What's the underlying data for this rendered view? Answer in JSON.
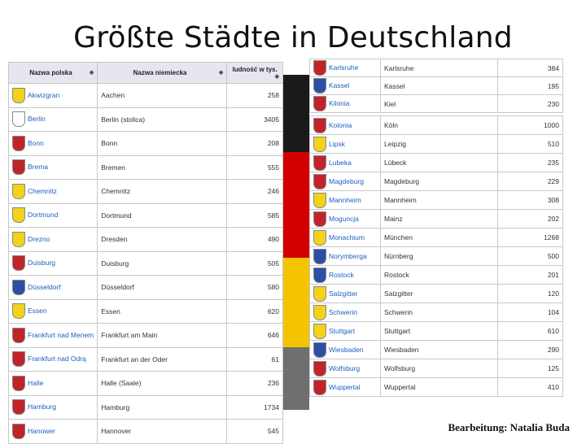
{
  "title": "Größte Städte in Deutschland",
  "credit": "Bearbeitung: Natalia Buda",
  "left_table": {
    "headers": [
      "Nazwa polska",
      "Nazwa niemiecka",
      "ludność w tys."
    ],
    "rows": [
      {
        "pl": "Akwizgran",
        "de": "Aachen",
        "pop": "258",
        "color": "#f2d21b"
      },
      {
        "pl": "Berlin",
        "de": "Berlin (stolica)",
        "pop": "3405",
        "color": "#ffffff"
      },
      {
        "pl": "Bonn",
        "de": "Bonn",
        "pop": "208",
        "color": "#c0242a"
      },
      {
        "pl": "Brema",
        "de": "Bremen",
        "pop": "555",
        "color": "#c0242a"
      },
      {
        "pl": "Chemnitz",
        "de": "Chemnitz",
        "pop": "246",
        "color": "#f2d21b"
      },
      {
        "pl": "Dortmund",
        "de": "Dortmund",
        "pop": "585",
        "color": "#f2d21b"
      },
      {
        "pl": "Drezno",
        "de": "Dresden",
        "pop": "490",
        "color": "#f2d21b"
      },
      {
        "pl": "Duisburg",
        "de": "Duisburg",
        "pop": "505",
        "color": "#c0242a"
      },
      {
        "pl": "Düsseldorf",
        "de": "Düsseldorf",
        "pop": "580",
        "color": "#2c4fa3"
      },
      {
        "pl": "Essen",
        "de": "Essen",
        "pop": "620",
        "color": "#f2d21b"
      },
      {
        "pl": "Frankfurt nad Menem",
        "de": "Frankfurt am Main",
        "pop": "646",
        "color": "#c0242a"
      },
      {
        "pl": "Frankfurt nad Odrą",
        "de": "Frankfurt an der Oder",
        "pop": "61",
        "color": "#c0242a"
      },
      {
        "pl": "Halle",
        "de": "Halle (Saale)",
        "pop": "236",
        "color": "#c0242a"
      },
      {
        "pl": "Hamburg",
        "de": "Hamburg",
        "pop": "1734",
        "color": "#c0242a"
      },
      {
        "pl": "Hanower",
        "de": "Hannover",
        "pop": "545",
        "color": "#c0242a"
      }
    ]
  },
  "right_top_table": {
    "rows": [
      {
        "pl": "Karlsruhe",
        "de": "Karlsruhe",
        "pop": "384",
        "color": "#c0242a"
      },
      {
        "pl": "Kassel",
        "de": "Kassel",
        "pop": "195",
        "color": "#2c4fa3"
      },
      {
        "pl": "Kilonia",
        "de": "Kiel",
        "pop": "230",
        "color": "#c0242a"
      }
    ]
  },
  "right_table": {
    "rows": [
      {
        "pl": "Kolonia",
        "de": "Köln",
        "pop": "1000",
        "color": "#c0242a"
      },
      {
        "pl": "Lipsk",
        "de": "Leipzig",
        "pop": "510",
        "color": "#f2d21b"
      },
      {
        "pl": "Lubeka",
        "de": "Lübeck",
        "pop": "235",
        "color": "#c0242a"
      },
      {
        "pl": "Magdeburg",
        "de": "Magdeburg",
        "pop": "229",
        "color": "#c0242a"
      },
      {
        "pl": "Mannheim",
        "de": "Mannheim",
        "pop": "308",
        "color": "#f2d21b"
      },
      {
        "pl": "Moguncja",
        "de": "Mainz",
        "pop": "202",
        "color": "#c0242a"
      },
      {
        "pl": "Monachium",
        "de": "München",
        "pop": "1268",
        "color": "#f2d21b"
      },
      {
        "pl": "Norymberga",
        "de": "Nürnberg",
        "pop": "500",
        "color": "#2c4fa3"
      },
      {
        "pl": "Rostock",
        "de": "Rostock",
        "pop": "201",
        "color": "#2c4fa3"
      },
      {
        "pl": "Salzgitter",
        "de": "Salzgitter",
        "pop": "120",
        "color": "#f2d21b"
      },
      {
        "pl": "Schwerin",
        "de": "Schwerin",
        "pop": "104",
        "color": "#f2d21b"
      },
      {
        "pl": "Stuttgart",
        "de": "Stuttgart",
        "pop": "610",
        "color": "#f2d21b"
      },
      {
        "pl": "Wiesbaden",
        "de": "Wiesbaden",
        "pop": "290",
        "color": "#2c4fa3"
      },
      {
        "pl": "Wolfsburg",
        "de": "Wolfsburg",
        "pop": "125",
        "color": "#c0242a"
      },
      {
        "pl": "Wuppertal",
        "de": "Wuppertal",
        "pop": "410",
        "color": "#c0242a"
      }
    ]
  }
}
